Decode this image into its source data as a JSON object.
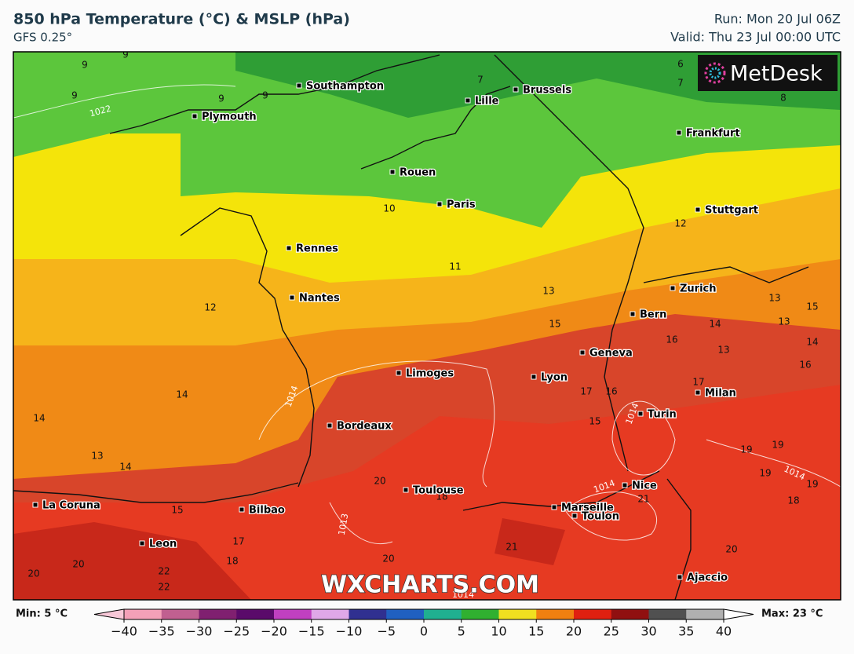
{
  "header": {
    "title": "850 hPa Temperature (°C) & MSLP (hPa)",
    "model": "GFS 0.25°",
    "run": "Run: Mon 20 Jul 06Z",
    "valid": "Valid: Thu 23 Jul 00:00 UTC"
  },
  "logo": "MetDesk",
  "watermark": "WXCHARTS.COM",
  "cities": [
    "Southampton",
    "Brussels",
    "Lille",
    "Plymouth",
    "Frankfurt",
    "Rouen",
    "Paris",
    "Stuttgart",
    "Rennes",
    "Nantes",
    "Zurich",
    "Bern",
    "Geneva",
    "Limoges",
    "Lyon",
    "Milan",
    "Turin",
    "Bordeaux",
    "Toulouse",
    "Nice",
    "La Coruna",
    "Marseille",
    "Bilbao",
    "Toulon",
    "Leon",
    "Ajaccio"
  ],
  "temperature_labels": [
    9,
    9,
    9,
    9,
    9,
    7,
    6,
    7,
    8,
    10,
    11,
    12,
    12,
    13,
    13,
    15,
    13,
    15,
    14,
    14,
    16,
    13,
    16,
    17,
    17,
    16,
    15,
    14,
    14,
    13,
    14,
    19,
    19,
    19,
    19,
    18,
    15,
    20,
    18,
    21,
    17,
    18,
    21,
    20,
    20,
    20,
    22,
    22,
    20
  ],
  "pressure_labels": [
    1022,
    1014,
    1014,
    1014,
    1014,
    1013,
    1014
  ],
  "legend": {
    "min": "Min: 5 °C",
    "max": "Max: 23 °C",
    "ticks": [
      {
        "value": -40,
        "label": "−40"
      },
      {
        "value": -35,
        "label": "−35"
      },
      {
        "value": -30,
        "label": "−30"
      },
      {
        "value": -25,
        "label": "−25"
      },
      {
        "value": -20,
        "label": "−20"
      },
      {
        "value": -15,
        "label": "−15"
      },
      {
        "value": -10,
        "label": "−10"
      },
      {
        "value": -5,
        "label": "−5"
      },
      0,
      5,
      10,
      15,
      20,
      25,
      30,
      35,
      40
    ],
    "colors": [
      "#f4a0b8",
      "#c06090",
      "#802070",
      "#5a0a6a",
      "#c040c0",
      "#e0a8e8",
      "#303090",
      "#2060c0",
      "#20b090",
      "#30b030",
      "#f0e020",
      "#f08010",
      "#e02010",
      "#901010",
      "#505050",
      "#b0b0b0"
    ]
  }
}
